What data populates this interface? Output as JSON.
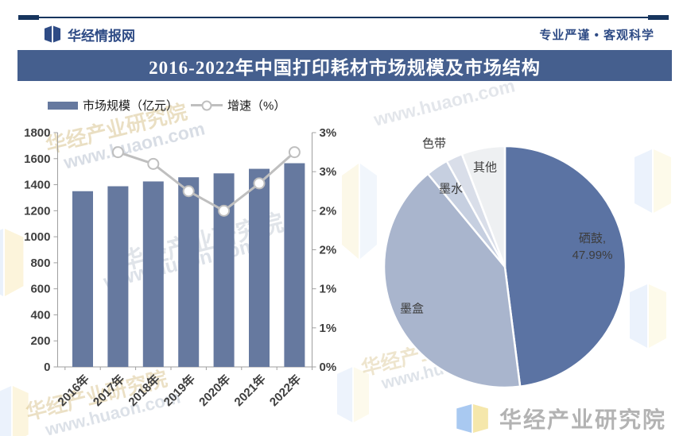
{
  "header": {
    "logo_text": "华经情报网",
    "slogan": "专业严谨 • 客观科学",
    "title": "2016-2022年中国打印耗材市场规模及市场结构"
  },
  "colors": {
    "bar": "#66799f",
    "line": "#bfbfbf",
    "title_bar": "#455f8e",
    "navy_text": "#2e4b85",
    "navy_dark": "#17355e",
    "axis": "#9f9f9f",
    "tick_text": "#3f3f3f",
    "footer_text_gray": "#b3b3b3",
    "footer_logo_blue": "#a9c9f1",
    "footer_logo_yellow": "#f5e7ab"
  },
  "chart_data": [
    {
      "type": "bar",
      "categories": [
        "2016年",
        "2017年",
        "2018年",
        "2019年",
        "2020年",
        "2021年",
        "2022年"
      ],
      "series": [
        {
          "name": "市场规模（亿元）",
          "type": "bar",
          "axis": "left",
          "values": [
            1350,
            1388,
            1425,
            1457,
            1487,
            1522,
            1565
          ]
        },
        {
          "name": "增速（%）",
          "type": "line",
          "axis": "right",
          "values": [
            null,
            2.75,
            2.6,
            2.25,
            2.0,
            2.35,
            2.75
          ]
        }
      ],
      "left_axis": {
        "min": 0,
        "max": 1800,
        "step": 200,
        "tick_labels_top_to_bottom": [
          "1800",
          "1600",
          "1400",
          "1200",
          "1000",
          "800",
          "600",
          "400",
          "200",
          "0"
        ]
      },
      "right_axis": {
        "min": 0,
        "max": 3,
        "step": 0.5,
        "tick_labels_top_to_bottom": [
          "3%",
          "3%",
          "2%",
          "2%",
          "1%",
          "1%",
          "0%"
        ]
      },
      "legend_position": "top",
      "grid": false
    },
    {
      "type": "pie",
      "start_angle_deg": 0,
      "direction": "clockwise",
      "slices": [
        {
          "label": "硒鼓",
          "value": 47.99,
          "callout_line1": "硒鼓,",
          "callout_line2": "47.99%",
          "color": "#5b73a3"
        },
        {
          "label": "墨盒",
          "value": 41.01,
          "color": "#a9b5cd"
        },
        {
          "label": "墨水",
          "value": 3.0,
          "color": "#c6cfe0"
        },
        {
          "label": "色带",
          "value": 2.2,
          "color": "#d9dee9"
        },
        {
          "label": "其他",
          "value": 5.8,
          "color": "#eef0f2"
        }
      ]
    }
  ],
  "footer": {
    "logo_text": "华经产业研究院"
  },
  "watermark": {
    "cn": "华经产业研究院",
    "url": "www.huaon.com"
  }
}
